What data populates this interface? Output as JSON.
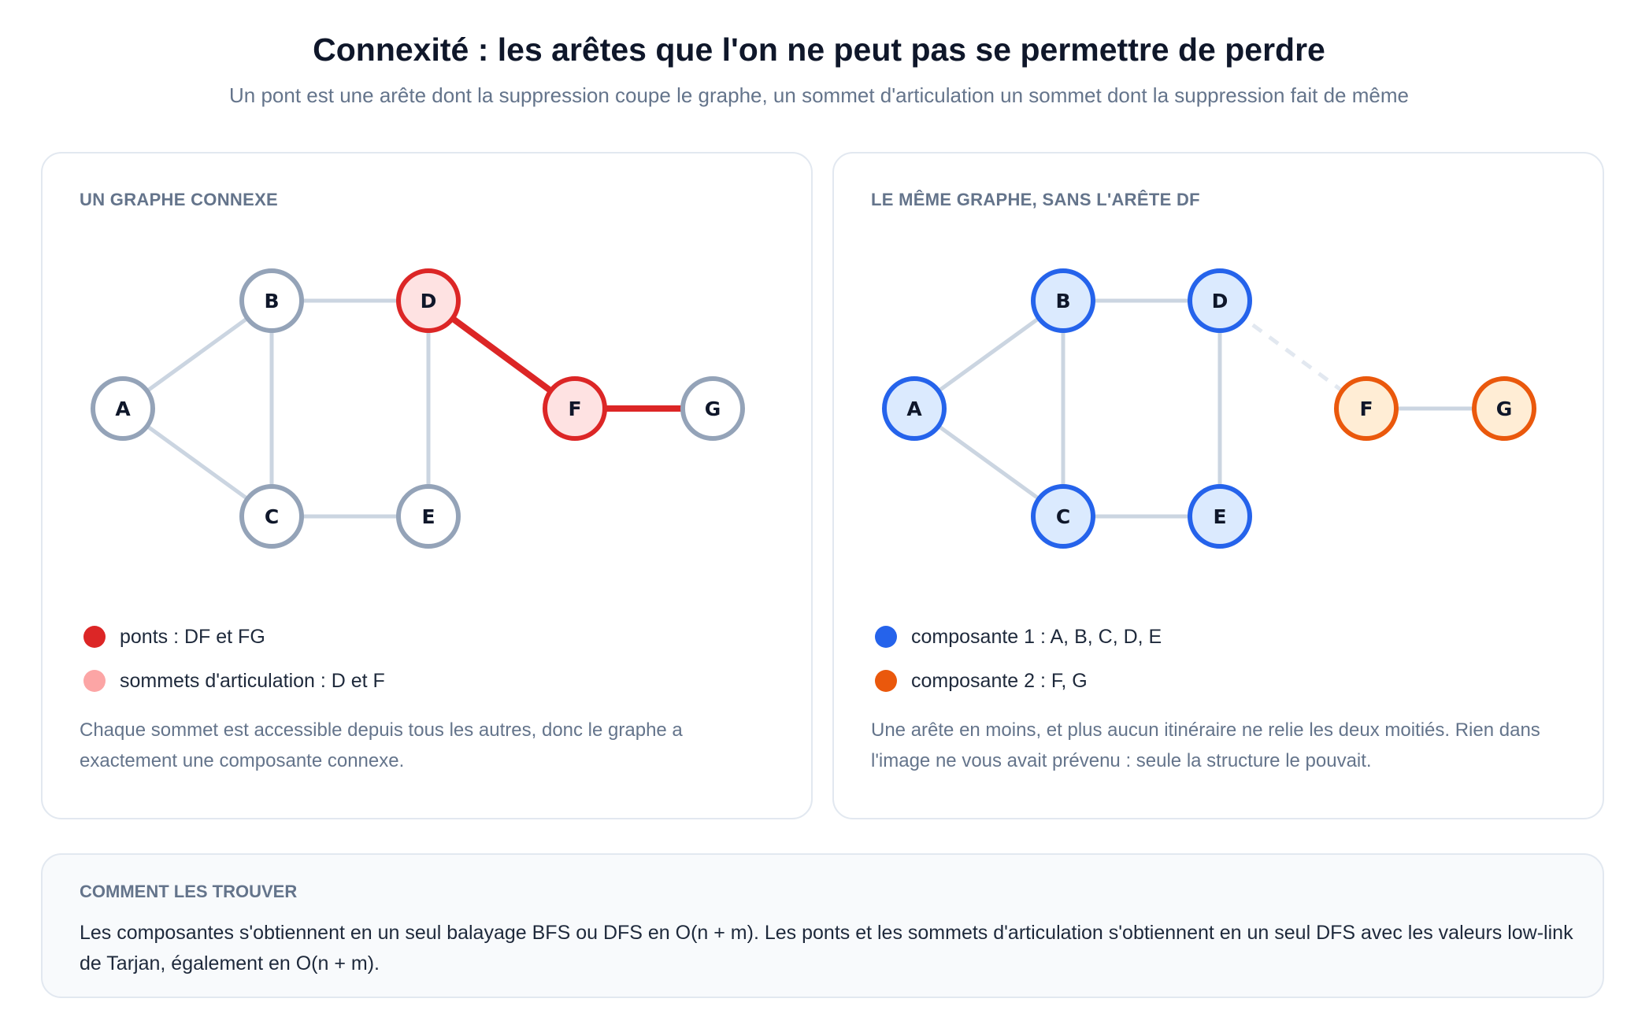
{
  "header": {
    "title": "Connexité : les arêtes que l'on ne peut pas se permettre de perdre",
    "subtitle": "Un pont est une arête dont la suppression coupe le graphe, un sommet d'articulation un sommet dont la suppression fait de même"
  },
  "left_panel": {
    "title": "UN GRAPHE CONNEXE",
    "legend": [
      {
        "label": "ponts : DF et FG",
        "color": "#dc2626"
      },
      {
        "label": "sommets d'articulation : D et F",
        "color": "#fca5a5"
      }
    ],
    "note": "Chaque sommet est accessible depuis tous les autres, donc le graphe a exactement une composante connexe.",
    "nodes": [
      {
        "id": "A",
        "style": "normal"
      },
      {
        "id": "B",
        "style": "normal"
      },
      {
        "id": "C",
        "style": "normal"
      },
      {
        "id": "D",
        "style": "articulation"
      },
      {
        "id": "E",
        "style": "normal"
      },
      {
        "id": "F",
        "style": "articulation"
      },
      {
        "id": "G",
        "style": "normal"
      }
    ],
    "edges": [
      {
        "from": "A",
        "to": "B",
        "style": "normal"
      },
      {
        "from": "A",
        "to": "C",
        "style": "normal"
      },
      {
        "from": "B",
        "to": "C",
        "style": "normal"
      },
      {
        "from": "B",
        "to": "D",
        "style": "normal"
      },
      {
        "from": "C",
        "to": "E",
        "style": "normal"
      },
      {
        "from": "D",
        "to": "E",
        "style": "normal"
      },
      {
        "from": "D",
        "to": "F",
        "style": "bridge"
      },
      {
        "from": "F",
        "to": "G",
        "style": "bridge"
      }
    ]
  },
  "right_panel": {
    "title": "LE MÊME GRAPHE, SANS L'ARÊTE DF",
    "legend": [
      {
        "label": "composante 1 : A, B, C, D, E",
        "color": "#2563eb"
      },
      {
        "label": "composante 2 : F, G",
        "color": "#ea580c"
      }
    ],
    "note": "Une arête en moins, et plus aucun itinéraire ne relie les deux moitiés. Rien dans l'image ne vous avait prévenu : seule la structure le pouvait.",
    "nodes": [
      {
        "id": "A",
        "style": "comp1"
      },
      {
        "id": "B",
        "style": "comp1"
      },
      {
        "id": "C",
        "style": "comp1"
      },
      {
        "id": "D",
        "style": "comp1"
      },
      {
        "id": "E",
        "style": "comp1"
      },
      {
        "id": "F",
        "style": "comp2"
      },
      {
        "id": "G",
        "style": "comp2"
      }
    ],
    "edges": [
      {
        "from": "A",
        "to": "B",
        "style": "normal"
      },
      {
        "from": "A",
        "to": "C",
        "style": "normal"
      },
      {
        "from": "B",
        "to": "C",
        "style": "normal"
      },
      {
        "from": "B",
        "to": "D",
        "style": "normal"
      },
      {
        "from": "C",
        "to": "E",
        "style": "normal"
      },
      {
        "from": "D",
        "to": "E",
        "style": "normal"
      },
      {
        "from": "D",
        "to": "F",
        "style": "removed"
      },
      {
        "from": "F",
        "to": "G",
        "style": "normal"
      }
    ]
  },
  "bottom_box": {
    "title": "COMMENT LES TROUVER",
    "text": "Les composantes s'obtiennent en un seul balayage BFS ou DFS en O(n + m). Les ponts et les sommets d'articulation s'obtiennent en un seul DFS avec les valeurs low-link de Tarjan, également en O(n + m)."
  }
}
